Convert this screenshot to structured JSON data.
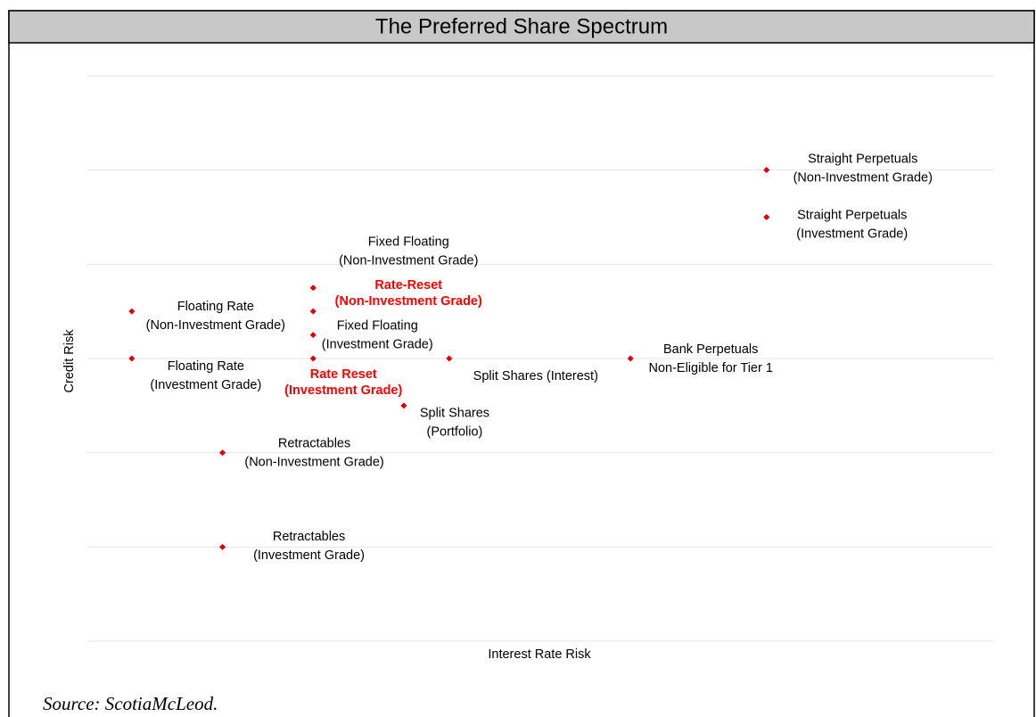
{
  "chart_data": {
    "type": "scatter",
    "title": "The Preferred Share Spectrum",
    "x_label": "Interest Rate Risk",
    "y_label": "Credit Risk",
    "x": [
      15,
      15,
      5,
      5,
      1,
      5,
      1,
      5,
      8,
      12,
      7,
      3,
      3
    ],
    "values": [
      5,
      4.5,
      3.75,
      3.5,
      3.5,
      3.25,
      3,
      3,
      3,
      3,
      2.5,
      2,
      1
    ],
    "point_labels": [
      [
        "Straight Perpetuals",
        "(Non-Investment Grade)"
      ],
      [
        "Straight Perpetuals",
        "(Investment Grade)"
      ],
      [
        "Fixed Floating",
        "(Non-Investment Grade)"
      ],
      [
        "Rate-Reset",
        "(Non-Investment Grade)"
      ],
      [
        "Floating Rate",
        "(Non-Investment Grade)"
      ],
      [
        "Fixed Floating",
        "(Investment Grade)"
      ],
      [
        "Floating Rate",
        "(Investment Grade)"
      ],
      [
        "Rate Reset",
        "(Investment Grade)"
      ],
      [
        "Split Shares (Interest)"
      ],
      [
        "Bank Perpetuals",
        "Non-Eligible for Tier 1"
      ],
      [
        "Split Shares",
        "(Portfolio)"
      ],
      [
        "Retractables",
        "(Non-Investment Grade)"
      ],
      [
        "Retractables",
        "(Investment Grade)"
      ]
    ],
    "label_colors": [
      "#000000",
      "#000000",
      "#000000",
      "#ff0000",
      "#000000",
      "#000000",
      "#000000",
      "#ff0000",
      "#000000",
      "#000000",
      "#000000",
      "#000000",
      "#000000"
    ],
    "color": "#e00000",
    "xlim": [
      0,
      20
    ],
    "ylim": [
      0,
      6
    ],
    "yticks": [
      0,
      1,
      2,
      3,
      4,
      5,
      6
    ],
    "grid": true
  },
  "source": "Source: ScotiaMcLeod."
}
